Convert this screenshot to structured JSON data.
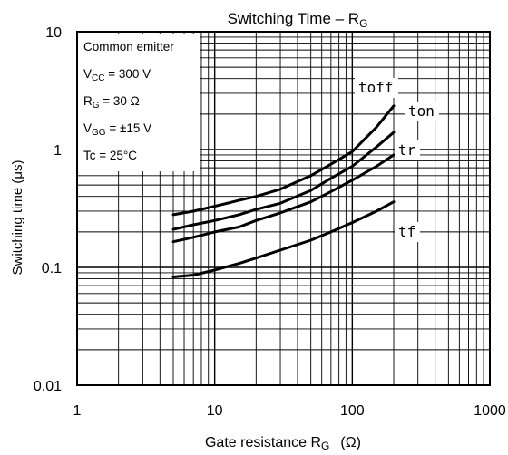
{
  "chart_data": {
    "type": "line",
    "title": {
      "main": "Switching Time – R",
      "sub": "G"
    },
    "xlabel": {
      "main": "Gate resistance  R",
      "sub": "G",
      "unit": "(Ω)"
    },
    "ylabel": "Switching time   (μs)",
    "xscale": "log",
    "yscale": "log",
    "xlim": [
      1,
      1000
    ],
    "ylim": [
      0.01,
      10
    ],
    "x_ticks": [
      "1",
      "10",
      "100",
      "1000"
    ],
    "y_ticks": [
      "10",
      "1",
      "0.1",
      "0.01"
    ],
    "grid": true,
    "conditions": [
      {
        "main": "Common emitter",
        "sub": "",
        "rest": ""
      },
      {
        "main": "V",
        "sub": "CC",
        "rest": " = 300 V"
      },
      {
        "main": "R",
        "sub": "G",
        "rest": " = 30 Ω"
      },
      {
        "main": "V",
        "sub": "GG",
        "rest": " = ±15 V"
      },
      {
        "main": "Tc = 25°C",
        "sub": "",
        "rest": ""
      }
    ],
    "series": [
      {
        "name": "toff",
        "x": [
          5,
          7,
          10,
          15,
          20,
          30,
          50,
          70,
          100,
          150,
          200
        ],
        "y": [
          0.28,
          0.3,
          0.33,
          0.37,
          0.4,
          0.46,
          0.6,
          0.75,
          0.96,
          1.55,
          2.35
        ]
      },
      {
        "name": "ton",
        "x": [
          5,
          7,
          10,
          15,
          20,
          30,
          50,
          70,
          100,
          150,
          200
        ],
        "y": [
          0.21,
          0.23,
          0.25,
          0.28,
          0.31,
          0.35,
          0.45,
          0.57,
          0.72,
          1.05,
          1.4
        ]
      },
      {
        "name": "tr",
        "x": [
          5,
          7,
          10,
          15,
          20,
          30,
          50,
          70,
          100,
          150,
          200
        ],
        "y": [
          0.165,
          0.18,
          0.2,
          0.22,
          0.25,
          0.29,
          0.36,
          0.44,
          0.55,
          0.72,
          0.9
        ]
      },
      {
        "name": "tf",
        "x": [
          5,
          7,
          10,
          15,
          20,
          30,
          50,
          70,
          100,
          150,
          200
        ],
        "y": [
          0.083,
          0.086,
          0.095,
          0.108,
          0.12,
          0.14,
          0.17,
          0.2,
          0.24,
          0.3,
          0.36
        ]
      }
    ]
  }
}
